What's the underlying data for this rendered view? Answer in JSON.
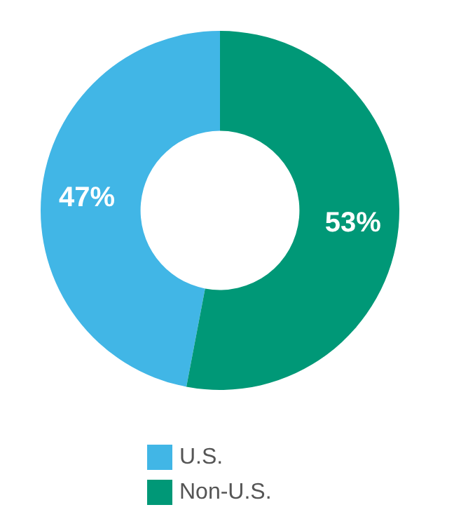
{
  "chart_data": {
    "type": "donut",
    "categories": [
      "U.S.",
      "Non-U.S."
    ],
    "values": [
      47,
      53
    ],
    "colors": [
      "#41b6e6",
      "#009877"
    ],
    "value_labels": [
      "47%",
      "53%"
    ],
    "legend": "bottom"
  }
}
